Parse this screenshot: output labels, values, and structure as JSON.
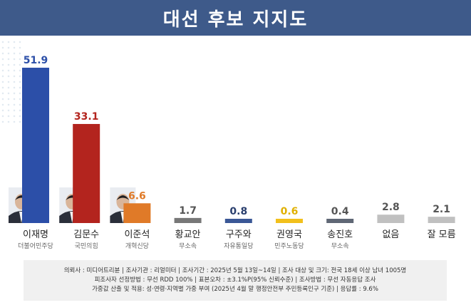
{
  "title": "대선 후보 지지도",
  "chart_data": {
    "type": "bar",
    "categories": [
      "이재명",
      "김문수",
      "이준석",
      "황교안",
      "구주와",
      "권영국",
      "송진호",
      "없음",
      "잘 모름"
    ],
    "parties": [
      "더불어민주당",
      "국민의힘",
      "개혁신당",
      "무소속",
      "자유통일당",
      "민주노동당",
      "무소속",
      "",
      ""
    ],
    "values": [
      51.9,
      33.1,
      6.6,
      1.7,
      0.8,
      0.6,
      0.4,
      2.8,
      2.1
    ],
    "value_labels": [
      "51.9",
      "33.1",
      "6.6",
      "1.7",
      "0.8",
      "0.6",
      "0.4",
      "2.8",
      "2.1"
    ],
    "colors": [
      "#2c4fa8",
      "#b3241e",
      "#e07a28",
      "#777777",
      "#3a5796",
      "#f2c01c",
      "#5f6775",
      "#c0c0c0",
      "#c0c0c0"
    ],
    "label_colors": [
      "#2c4fa8",
      "#b3241e",
      "#e07a28",
      "#555555",
      "#2a3f6e",
      "#e0b000",
      "#555555",
      "#555555",
      "#555555"
    ],
    "ylim": [
      0,
      60
    ]
  },
  "footer": {
    "line1": "의뢰사 : 미디어트리뷴  | 조사기관 : 리얼미터  | 조사기간 : 2025년 5월 13일~14일 | 조사 대상 및 크기: 전국 18세 이상 남녀 1005명",
    "line2": "피조사자 선정방법 : 무선 RDD 100% | 표본오차 : ±3.1%P(95% 신뢰수준) | 조사방법 : 무선 자동응답 조사",
    "line3": "가중값 산출 및 적용: 성·연령·지역별 가중 부여 (2025년 4월 말 행정안전부 주민등록인구 기준) | 응답률 : 9.6%"
  }
}
